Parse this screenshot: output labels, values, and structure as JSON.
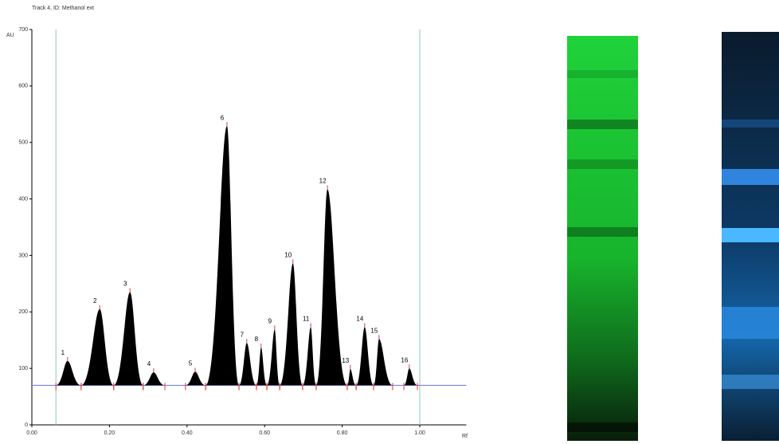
{
  "chart_data": {
    "type": "densitogram",
    "title": "Track 4, ID: Methanol ext",
    "x_label": "Rf",
    "y_label": "AU",
    "xlim": [
      0,
      1.12
    ],
    "ylim": [
      0,
      700
    ],
    "xticks": [
      {
        "value": 0,
        "label": "0.00"
      },
      {
        "value": 0.2,
        "label": "0.20"
      },
      {
        "value": 0.4,
        "label": "0.40"
      },
      {
        "value": 0.6,
        "label": "0.60"
      },
      {
        "value": 0.8,
        "label": "0.80"
      },
      {
        "value": 1,
        "label": "1.00"
      }
    ],
    "yticks": [
      0,
      100,
      200,
      300,
      400,
      500,
      600,
      700
    ],
    "baseline": 70,
    "vlines": [
      0.062,
      1.0
    ],
    "color": "#000000",
    "peaks": {
      "labels": [
        "1",
        "2",
        "3",
        "4",
        "5",
        "6",
        "7",
        "8",
        "9",
        "10",
        "11",
        "12",
        "13",
        "14",
        "15",
        "16"
      ],
      "rf": [
        0.092,
        0.175,
        0.253,
        0.314,
        0.421,
        0.503,
        0.554,
        0.591,
        0.626,
        0.673,
        0.719,
        0.762,
        0.821,
        0.858,
        0.895,
        0.973
      ],
      "start": [
        0.062,
        0.127,
        0.211,
        0.287,
        0.396,
        0.448,
        0.534,
        0.579,
        0.606,
        0.639,
        0.698,
        0.733,
        0.813,
        0.836,
        0.881,
        0.959
      ],
      "end": [
        0.127,
        0.211,
        0.287,
        0.343,
        0.448,
        0.534,
        0.579,
        0.606,
        0.639,
        0.698,
        0.733,
        0.813,
        0.836,
        0.881,
        0.93,
        0.994
      ],
      "height": [
        113,
        205,
        235,
        93,
        94,
        529,
        145,
        137,
        169,
        286,
        173,
        417,
        99,
        173,
        152,
        100
      ]
    }
  }
}
